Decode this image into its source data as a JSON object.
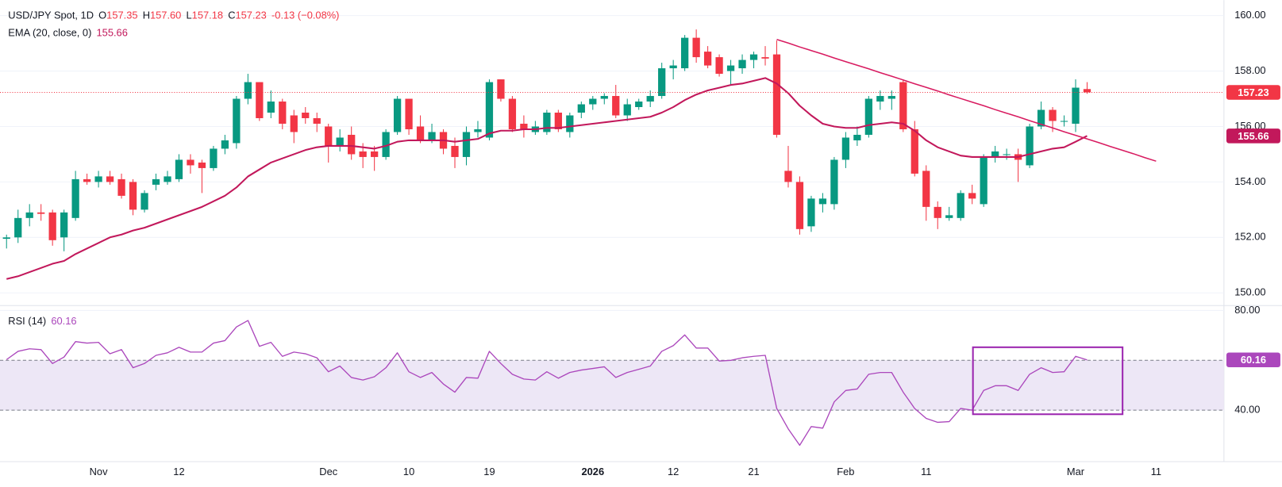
{
  "chart_data": [
    {
      "type": "candlestick",
      "title": "USD/JPY Spot, 1D",
      "quote_keys": [
        "O",
        "H",
        "L",
        "C"
      ],
      "quote_values": [
        "157.35",
        "157.60",
        "157.18",
        "157.23"
      ],
      "change": "-0.13 (−0.08%)",
      "last_label": "157.23",
      "up_color": "#089981",
      "down_color": "#f23645",
      "categories": [
        null,
        null,
        null,
        null,
        null,
        null,
        null,
        null,
        "Nov",
        null,
        null,
        null,
        null,
        null,
        null,
        "12",
        null,
        null,
        null,
        null,
        null,
        null,
        null,
        null,
        null,
        null,
        null,
        null,
        "Dec",
        null,
        null,
        null,
        null,
        null,
        null,
        "10",
        null,
        null,
        null,
        null,
        null,
        null,
        "19",
        null,
        null,
        null,
        null,
        null,
        null,
        null,
        null,
        "2026",
        null,
        null,
        null,
        null,
        null,
        null,
        "12",
        null,
        null,
        null,
        null,
        null,
        null,
        "21",
        null,
        null,
        null,
        null,
        null,
        null,
        null,
        "Feb",
        null,
        null,
        null,
        null,
        null,
        null,
        "11",
        null,
        null,
        null,
        null,
        null,
        null,
        null,
        null,
        null,
        null,
        null,
        null,
        "Mar",
        null,
        null,
        null,
        null,
        null,
        null,
        "11"
      ],
      "open": [
        151.95,
        152.0,
        152.7,
        152.9,
        152.9,
        152.0,
        152.7,
        154.1,
        154.0,
        154.2,
        154.1,
        154.0,
        153.0,
        153.9,
        154.0,
        154.1,
        154.8,
        154.7,
        154.5,
        155.2,
        155.4,
        157.0,
        157.6,
        156.5,
        156.9,
        156.4,
        156.5,
        156.3,
        156.0,
        155.3,
        155.7,
        155.1,
        155.1,
        154.9,
        155.8,
        157.0,
        156.0,
        155.5,
        155.8,
        155.3,
        154.9,
        155.8,
        155.6,
        157.7,
        157.0,
        156.1,
        155.8,
        155.8,
        156.5,
        155.8,
        156.5,
        156.8,
        157.0,
        157.1,
        156.4,
        156.7,
        156.9,
        157.1,
        158.1,
        158.1,
        159.2,
        158.7,
        158.5,
        158.0,
        158.1,
        158.4,
        158.5,
        158.6,
        154.4,
        154.0,
        152.4,
        153.2,
        153.2,
        154.8,
        155.5,
        155.7,
        156.9,
        157.0,
        157.6,
        155.9,
        154.4,
        153.1,
        152.7,
        152.7,
        153.6,
        153.2,
        154.9,
        155.0,
        155.0,
        154.6,
        156.0,
        156.6,
        156.2,
        156.1,
        157.35,
        null,
        null,
        null,
        null,
        null,
        null
      ],
      "high": [
        152.1,
        153.0,
        153.2,
        153.2,
        153.0,
        153.0,
        154.4,
        154.3,
        154.4,
        154.4,
        154.3,
        154.1,
        153.7,
        154.3,
        154.4,
        155.0,
        155.0,
        154.8,
        155.3,
        155.7,
        157.1,
        157.9,
        157.6,
        157.3,
        157.0,
        156.6,
        156.7,
        156.5,
        156.1,
        155.9,
        156.0,
        155.4,
        155.3,
        155.9,
        157.1,
        157.0,
        156.4,
        156.1,
        155.9,
        155.6,
        156.0,
        156.2,
        157.7,
        157.7,
        157.1,
        156.4,
        156.2,
        156.6,
        156.6,
        156.5,
        156.9,
        157.1,
        157.2,
        157.5,
        157.0,
        157.0,
        157.3,
        158.3,
        158.4,
        159.3,
        159.5,
        158.9,
        158.6,
        158.4,
        158.6,
        158.7,
        158.9,
        159.1,
        155.3,
        154.2,
        153.5,
        153.6,
        154.9,
        155.8,
        156.0,
        157.1,
        157.3,
        157.3,
        157.7,
        156.2,
        154.6,
        153.3,
        153.1,
        153.7,
        153.9,
        155.0,
        155.3,
        155.2,
        155.2,
        156.1,
        156.9,
        156.7,
        156.4,
        157.7,
        157.6,
        null,
        null,
        null,
        null,
        null,
        null
      ],
      "low": [
        151.6,
        151.8,
        152.4,
        152.6,
        151.7,
        151.5,
        152.6,
        153.9,
        153.8,
        153.9,
        153.4,
        152.8,
        152.9,
        153.7,
        153.9,
        154.0,
        154.3,
        153.6,
        154.4,
        155.0,
        155.2,
        156.8,
        156.2,
        156.3,
        155.9,
        155.4,
        156.1,
        155.8,
        154.7,
        155.1,
        154.8,
        154.5,
        154.4,
        154.8,
        155.7,
        155.7,
        155.4,
        155.4,
        155.0,
        154.5,
        154.6,
        155.6,
        155.5,
        156.9,
        155.8,
        155.6,
        155.7,
        155.7,
        155.8,
        155.6,
        156.3,
        156.6,
        156.8,
        156.3,
        156.2,
        156.6,
        156.7,
        157.0,
        157.7,
        158.0,
        158.3,
        158.1,
        157.8,
        157.5,
        157.9,
        158.1,
        158.2,
        155.6,
        153.8,
        152.1,
        152.2,
        152.9,
        153.0,
        154.5,
        155.3,
        155.6,
        156.6,
        156.6,
        155.8,
        154.2,
        152.6,
        152.3,
        152.6,
        152.6,
        153.2,
        153.1,
        154.7,
        154.8,
        154.0,
        154.5,
        155.9,
        155.8,
        156.0,
        155.8,
        157.18,
        null,
        null,
        null,
        null,
        null,
        null
      ],
      "close": [
        152.0,
        152.7,
        152.9,
        152.85,
        151.9,
        152.9,
        154.1,
        154.0,
        154.2,
        154.0,
        153.5,
        153.0,
        153.6,
        154.1,
        154.2,
        154.8,
        154.6,
        154.5,
        155.2,
        155.5,
        157.0,
        157.6,
        156.3,
        156.9,
        156.1,
        155.8,
        156.3,
        156.1,
        155.3,
        155.6,
        155.0,
        154.9,
        154.9,
        155.8,
        157.0,
        155.9,
        155.5,
        155.8,
        155.2,
        154.9,
        155.8,
        155.9,
        157.6,
        157.0,
        155.9,
        155.9,
        156.0,
        156.5,
        155.9,
        156.4,
        156.8,
        157.0,
        157.1,
        156.4,
        156.8,
        156.9,
        157.1,
        158.1,
        158.2,
        159.2,
        158.5,
        158.2,
        157.9,
        158.2,
        158.4,
        158.6,
        158.45,
        155.7,
        154.0,
        152.3,
        153.4,
        153.4,
        154.8,
        155.6,
        155.7,
        157.0,
        157.1,
        157.1,
        155.9,
        154.3,
        153.1,
        152.7,
        152.8,
        153.6,
        153.4,
        154.9,
        155.1,
        155.0,
        154.8,
        156.0,
        156.6,
        156.2,
        156.2,
        157.4,
        157.23,
        null,
        null,
        null,
        null,
        null,
        null
      ],
      "series": [
        {
          "name": "EMA (20, close, 0)",
          "color": "#c2185b",
          "last_label": "155.66",
          "values": [
            150.5,
            150.6,
            150.75,
            150.9,
            151.05,
            151.15,
            151.4,
            151.6,
            151.8,
            152.0,
            152.1,
            152.25,
            152.35,
            152.5,
            152.65,
            152.8,
            152.95,
            153.1,
            153.3,
            153.5,
            153.8,
            154.2,
            154.45,
            154.7,
            154.85,
            155.0,
            155.15,
            155.25,
            155.3,
            155.3,
            155.3,
            155.25,
            155.2,
            155.3,
            155.45,
            155.5,
            155.5,
            155.5,
            155.5,
            155.45,
            155.5,
            155.55,
            155.75,
            155.85,
            155.85,
            155.9,
            155.9,
            155.95,
            155.95,
            156.0,
            156.05,
            156.1,
            156.15,
            156.2,
            156.25,
            156.3,
            156.35,
            156.5,
            156.7,
            156.95,
            157.15,
            157.3,
            157.4,
            157.5,
            157.55,
            157.65,
            157.75,
            157.55,
            157.2,
            156.75,
            156.4,
            156.1,
            156.0,
            155.95,
            155.95,
            156.05,
            156.1,
            156.15,
            156.1,
            155.85,
            155.5,
            155.25,
            155.1,
            154.95,
            154.9,
            154.9,
            154.9,
            154.9,
            154.9,
            155.0,
            155.1,
            155.2,
            155.25,
            155.45,
            155.66,
            null,
            null,
            null,
            null,
            null,
            null
          ]
        },
        {
          "color": "#d81b60",
          "values": [
            null,
            null,
            null,
            null,
            null,
            null,
            null,
            null,
            null,
            null,
            null,
            null,
            null,
            null,
            null,
            null,
            null,
            null,
            null,
            null,
            null,
            null,
            null,
            null,
            null,
            null,
            null,
            null,
            null,
            null,
            null,
            null,
            null,
            null,
            null,
            null,
            null,
            null,
            null,
            null,
            null,
            null,
            null,
            null,
            null,
            null,
            null,
            null,
            null,
            null,
            null,
            null,
            null,
            null,
            null,
            null,
            null,
            null,
            null,
            null,
            null,
            null,
            null,
            null,
            null,
            null,
            null,
            159.14,
            159.01,
            158.87,
            158.74,
            158.61,
            158.47,
            158.34,
            158.21,
            158.08,
            157.94,
            157.81,
            157.68,
            157.54,
            157.41,
            157.28,
            157.14,
            157.01,
            156.88,
            156.75,
            156.61,
            156.48,
            156.35,
            156.21,
            156.08,
            155.95,
            155.81,
            155.68,
            155.55,
            155.42,
            155.28,
            155.15,
            155.02,
            154.88,
            154.75
          ]
        }
      ],
      "ylim": [
        149.6,
        160.56
      ],
      "yticks": [
        {
          "value": 150,
          "label": "150.00"
        },
        {
          "value": 152,
          "label": "152.00"
        },
        {
          "value": 154,
          "label": "154.00"
        },
        {
          "value": 156,
          "label": "156.00"
        },
        {
          "value": 158,
          "label": "158.00"
        },
        {
          "value": 160,
          "label": "160.00"
        }
      ],
      "grid": true
    },
    {
      "type": "line",
      "series": [
        {
          "name": "RSI (14)",
          "color": "#ab47bc",
          "last_label": "60.16",
          "values": [
            60.3,
            63.6,
            64.6,
            64.3,
            58.7,
            61.3,
            67.5,
            66.9,
            67.2,
            62.6,
            64.3,
            57.0,
            58.7,
            62.0,
            63.0,
            65.2,
            63.3,
            63.3,
            66.9,
            67.9,
            73.4,
            76.0,
            65.6,
            67.2,
            61.6,
            63.3,
            62.6,
            61.0,
            55.4,
            57.7,
            53.1,
            52.1,
            53.4,
            57.0,
            63.0,
            55.4,
            53.1,
            55.1,
            50.5,
            47.2,
            53.1,
            52.8,
            63.6,
            58.7,
            54.4,
            52.5,
            52.1,
            55.4,
            52.8,
            55.1,
            56.1,
            56.7,
            57.4,
            53.1,
            55.1,
            56.4,
            57.7,
            63.6,
            65.9,
            70.2,
            64.9,
            64.9,
            59.7,
            60.0,
            61.0,
            61.6,
            62.0,
            40.7,
            32.5,
            25.9,
            33.4,
            32.8,
            43.3,
            47.9,
            48.5,
            54.4,
            55.1,
            55.1,
            47.2,
            40.7,
            36.7,
            35.1,
            35.4,
            40.7,
            40.0,
            47.9,
            49.8,
            49.8,
            47.9,
            54.4,
            57.0,
            55.1,
            55.4,
            61.6,
            60.16,
            null,
            null,
            null,
            null,
            null,
            null
          ]
        }
      ],
      "levels": [
        60,
        40
      ],
      "band_color": "#ede7f6",
      "ylim": [
        20,
        81.3
      ],
      "yticks": [
        {
          "value": 40,
          "label": "40.00"
        },
        {
          "value": 80,
          "label": "80.00"
        }
      ],
      "grid": true
    }
  ]
}
